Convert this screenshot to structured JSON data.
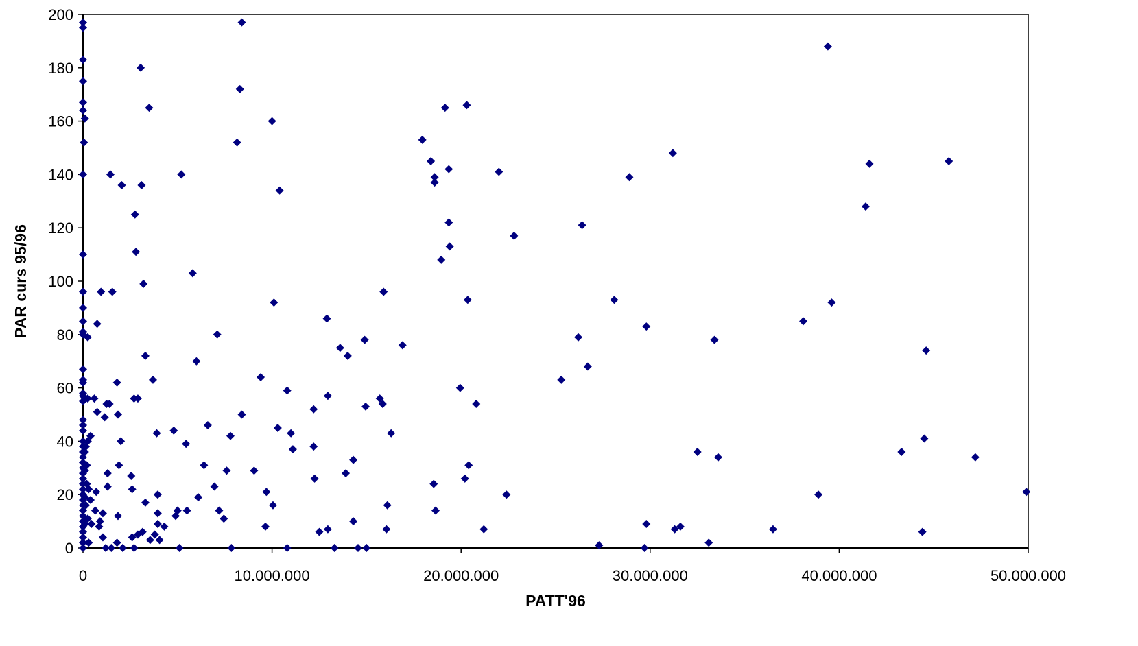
{
  "chart_data": {
    "type": "scatter",
    "title": "",
    "xlabel": "PATT'96",
    "ylabel": "PAR curs 95/96",
    "xlim": [
      0,
      50000000
    ],
    "ylim": [
      0,
      200
    ],
    "xticks": [
      0,
      10000000,
      20000000,
      30000000,
      40000000,
      50000000
    ],
    "xtick_labels": [
      "0",
      "10.000.000",
      "20.000.000",
      "30.000.000",
      "40.000.000",
      "50.000.000"
    ],
    "yticks": [
      0,
      20,
      40,
      60,
      80,
      100,
      120,
      140,
      160,
      180,
      200
    ],
    "ytick_labels": [
      "0",
      "20",
      "40",
      "60",
      "80",
      "100",
      "120",
      "140",
      "160",
      "180",
      "200"
    ],
    "grid": false,
    "legend": "none",
    "marker": "diamond",
    "marker_color": "#000080",
    "series": [
      {
        "points": [
          [
            0,
            197
          ],
          [
            0,
            195
          ],
          [
            0,
            183
          ],
          [
            0,
            175
          ],
          [
            0,
            167
          ],
          [
            0,
            164
          ],
          [
            100000,
            161
          ],
          [
            50000,
            152
          ],
          [
            0,
            140
          ],
          [
            0,
            110
          ],
          [
            0,
            96
          ],
          [
            0,
            90
          ],
          [
            0,
            85
          ],
          [
            0,
            81
          ],
          [
            0,
            80
          ],
          [
            0,
            67
          ],
          [
            0,
            63
          ],
          [
            0,
            62
          ],
          [
            0,
            58
          ],
          [
            0,
            57
          ],
          [
            0,
            55
          ],
          [
            0,
            48
          ],
          [
            0,
            46
          ],
          [
            0,
            44
          ],
          [
            0,
            40
          ],
          [
            0,
            38
          ],
          [
            0,
            36
          ],
          [
            0,
            34
          ],
          [
            0,
            32
          ],
          [
            0,
            30
          ],
          [
            0,
            28
          ],
          [
            0,
            26
          ],
          [
            0,
            24
          ],
          [
            0,
            22
          ],
          [
            0,
            20
          ],
          [
            0,
            18
          ],
          [
            0,
            16
          ],
          [
            0,
            14
          ],
          [
            0,
            12
          ],
          [
            0,
            10
          ],
          [
            0,
            8
          ],
          [
            0,
            6
          ],
          [
            0,
            4
          ],
          [
            0,
            2
          ],
          [
            0,
            0
          ],
          [
            100000,
            56
          ],
          [
            100000,
            36
          ],
          [
            100000,
            29
          ],
          [
            100000,
            19
          ],
          [
            100000,
            9
          ],
          [
            150000,
            38
          ],
          [
            150000,
            16
          ],
          [
            200000,
            31
          ],
          [
            200000,
            24
          ],
          [
            250000,
            79
          ],
          [
            250000,
            56
          ],
          [
            250000,
            40
          ],
          [
            250000,
            11
          ],
          [
            300000,
            22
          ],
          [
            300000,
            2
          ],
          [
            400000,
            42
          ],
          [
            400000,
            18
          ],
          [
            450000,
            9
          ],
          [
            600000,
            56
          ],
          [
            650000,
            14
          ],
          [
            700000,
            21
          ],
          [
            750000,
            84
          ],
          [
            750000,
            51
          ],
          [
            850000,
            8
          ],
          [
            900000,
            10
          ],
          [
            950000,
            96
          ],
          [
            1050000,
            13
          ],
          [
            1050000,
            4
          ],
          [
            1150000,
            49
          ],
          [
            1200000,
            0
          ],
          [
            1250000,
            54
          ],
          [
            1300000,
            23
          ],
          [
            1300000,
            28
          ],
          [
            1400000,
            54
          ],
          [
            1450000,
            140
          ],
          [
            1500000,
            0
          ],
          [
            1550000,
            96
          ],
          [
            1800000,
            62
          ],
          [
            1800000,
            2
          ],
          [
            1850000,
            12
          ],
          [
            1850000,
            50
          ],
          [
            1900000,
            31
          ],
          [
            2000000,
            40
          ],
          [
            2050000,
            136
          ],
          [
            2100000,
            0
          ],
          [
            2550000,
            27
          ],
          [
            2600000,
            22
          ],
          [
            2600000,
            4
          ],
          [
            2700000,
            0
          ],
          [
            2700000,
            56
          ],
          [
            2750000,
            125
          ],
          [
            2800000,
            111
          ],
          [
            2900000,
            56
          ],
          [
            2900000,
            5
          ],
          [
            3050000,
            180
          ],
          [
            3100000,
            136
          ],
          [
            3150000,
            6
          ],
          [
            3200000,
            99
          ],
          [
            3300000,
            72
          ],
          [
            3300000,
            17
          ],
          [
            3500000,
            165
          ],
          [
            3550000,
            3
          ],
          [
            3700000,
            63
          ],
          [
            3800000,
            5
          ],
          [
            3900000,
            43
          ],
          [
            3950000,
            20
          ],
          [
            3950000,
            13
          ],
          [
            3950000,
            9
          ],
          [
            4050000,
            3
          ],
          [
            4300000,
            8
          ],
          [
            4800000,
            44
          ],
          [
            4900000,
            12
          ],
          [
            5000000,
            14
          ],
          [
            5100000,
            0
          ],
          [
            5200000,
            140
          ],
          [
            5450000,
            39
          ],
          [
            5500000,
            14
          ],
          [
            5800000,
            103
          ],
          [
            6000000,
            70
          ],
          [
            6100000,
            19
          ],
          [
            6400000,
            31
          ],
          [
            6600000,
            46
          ],
          [
            6950000,
            23
          ],
          [
            7100000,
            80
          ],
          [
            7200000,
            14
          ],
          [
            7450000,
            11
          ],
          [
            7600000,
            29
          ],
          [
            7800000,
            42
          ],
          [
            7850000,
            0
          ],
          [
            8150000,
            152
          ],
          [
            8300000,
            172
          ],
          [
            8400000,
            197
          ],
          [
            8400000,
            50
          ],
          [
            9050000,
            29
          ],
          [
            9400000,
            64
          ],
          [
            9650000,
            8
          ],
          [
            9700000,
            21
          ],
          [
            10000000,
            160
          ],
          [
            10050000,
            16
          ],
          [
            10100000,
            92
          ],
          [
            10300000,
            45
          ],
          [
            10400000,
            134
          ],
          [
            10800000,
            0
          ],
          [
            10800000,
            59
          ],
          [
            11000000,
            43
          ],
          [
            11100000,
            37
          ],
          [
            12200000,
            52
          ],
          [
            12200000,
            38
          ],
          [
            12250000,
            26
          ],
          [
            12500000,
            6
          ],
          [
            12900000,
            86
          ],
          [
            12950000,
            57
          ],
          [
            12950000,
            7
          ],
          [
            13300000,
            0
          ],
          [
            13600000,
            75
          ],
          [
            13900000,
            28
          ],
          [
            14000000,
            72
          ],
          [
            14300000,
            33
          ],
          [
            14300000,
            10
          ],
          [
            14550000,
            0
          ],
          [
            14900000,
            78
          ],
          [
            14950000,
            53
          ],
          [
            15000000,
            0
          ],
          [
            15700000,
            56
          ],
          [
            15850000,
            54
          ],
          [
            15900000,
            96
          ],
          [
            16050000,
            7
          ],
          [
            16100000,
            16
          ],
          [
            16300000,
            43
          ],
          [
            16900000,
            76
          ],
          [
            17950000,
            153
          ],
          [
            18400000,
            145
          ],
          [
            18550000,
            24
          ],
          [
            18600000,
            139
          ],
          [
            18600000,
            137
          ],
          [
            18650000,
            14
          ],
          [
            18950000,
            108
          ],
          [
            19150000,
            165
          ],
          [
            19350000,
            142
          ],
          [
            19350000,
            122
          ],
          [
            19400000,
            113
          ],
          [
            19950000,
            60
          ],
          [
            20200000,
            26
          ],
          [
            20300000,
            166
          ],
          [
            20350000,
            93
          ],
          [
            20400000,
            31
          ],
          [
            20800000,
            54
          ],
          [
            21200000,
            7
          ],
          [
            22000000,
            141
          ],
          [
            22400000,
            20
          ],
          [
            22800000,
            117
          ],
          [
            25300000,
            63
          ],
          [
            26200000,
            79
          ],
          [
            26400000,
            121
          ],
          [
            26700000,
            68
          ],
          [
            27300000,
            1
          ],
          [
            28100000,
            93
          ],
          [
            28900000,
            139
          ],
          [
            29700000,
            0
          ],
          [
            29800000,
            83
          ],
          [
            29800000,
            9
          ],
          [
            31200000,
            148
          ],
          [
            31300000,
            7
          ],
          [
            31600000,
            8
          ],
          [
            32500000,
            36
          ],
          [
            33100000,
            2
          ],
          [
            33400000,
            78
          ],
          [
            33600000,
            34
          ],
          [
            36500000,
            7
          ],
          [
            38100000,
            85
          ],
          [
            38900000,
            20
          ],
          [
            39400000,
            188
          ],
          [
            39600000,
            92
          ],
          [
            41400000,
            128
          ],
          [
            41600000,
            144
          ],
          [
            43300000,
            36
          ],
          [
            44400000,
            6
          ],
          [
            44500000,
            41
          ],
          [
            44600000,
            74
          ],
          [
            45800000,
            145
          ],
          [
            47200000,
            34
          ],
          [
            49900000,
            21
          ]
        ]
      }
    ]
  }
}
